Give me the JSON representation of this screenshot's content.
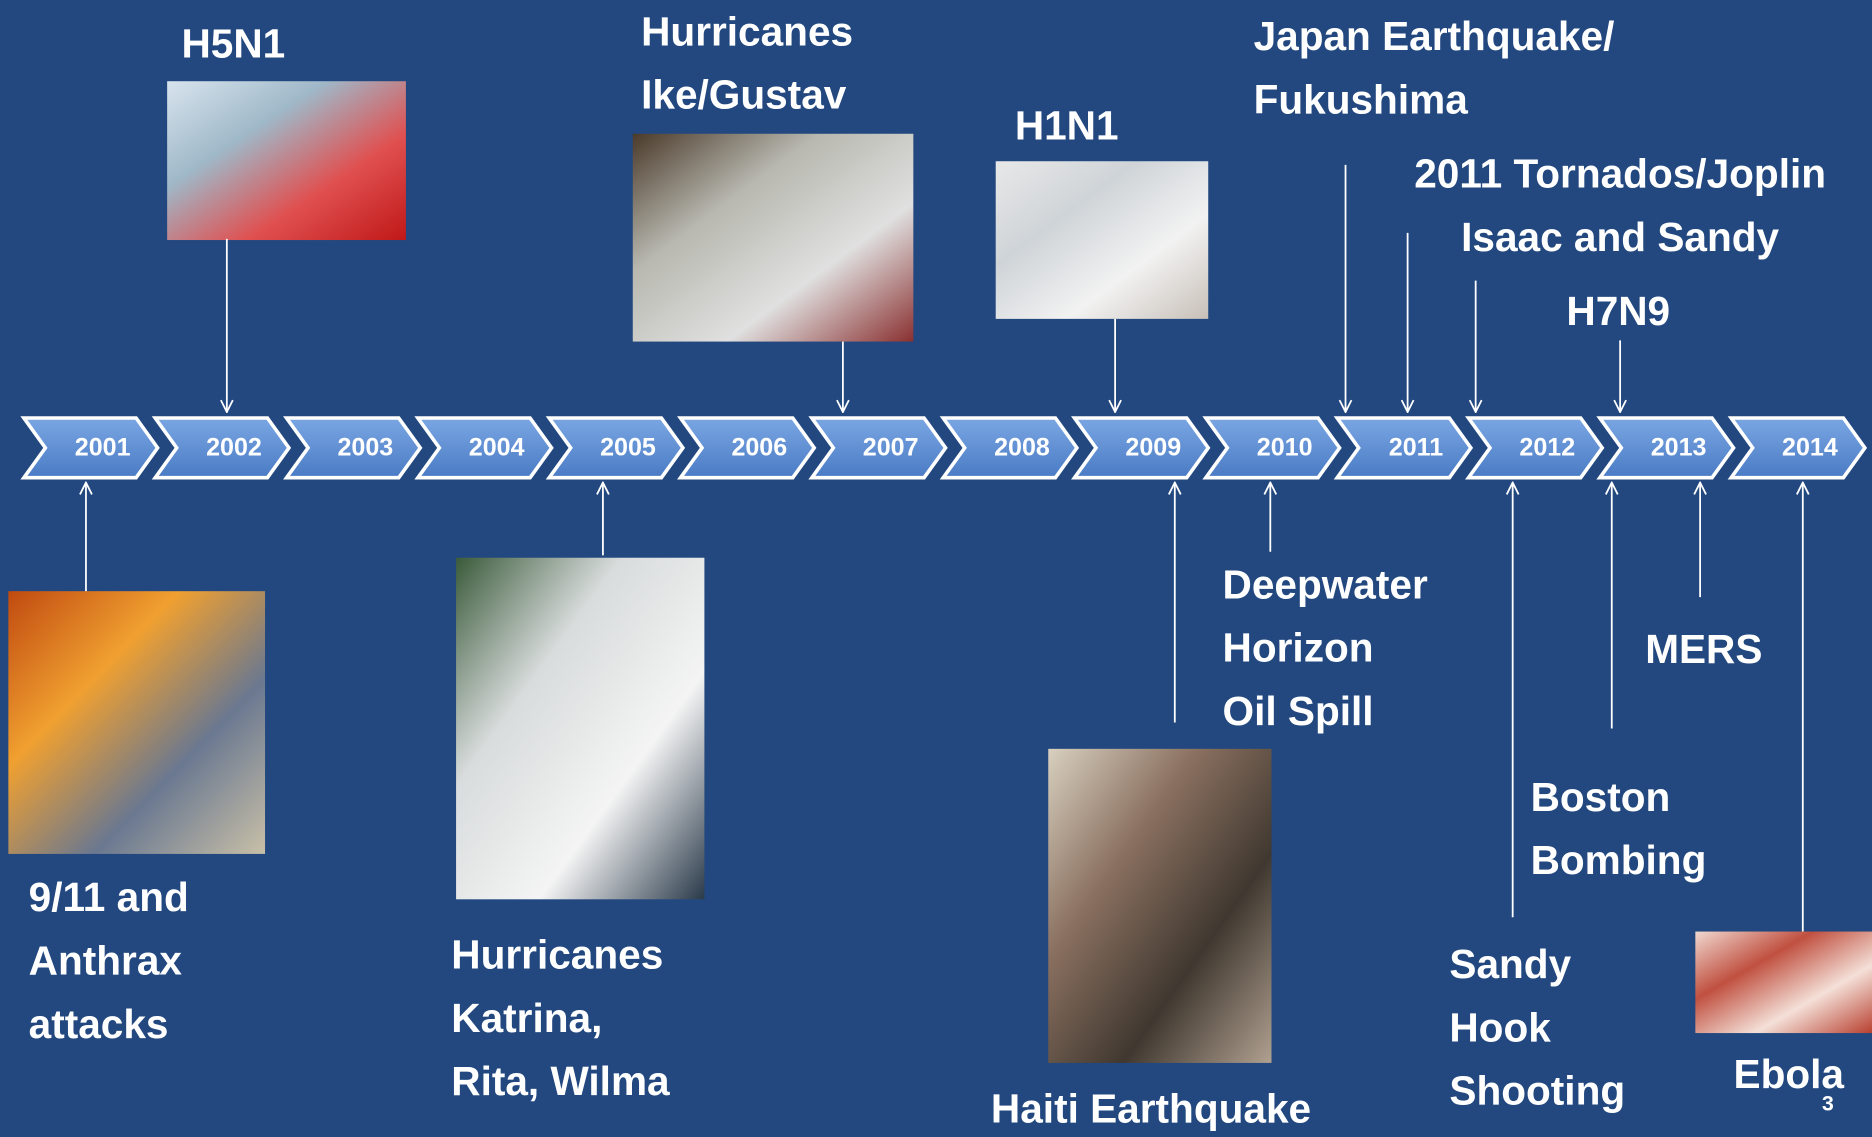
{
  "timeline": {
    "years": [
      "2001",
      "2002",
      "2003",
      "2004",
      "2005",
      "2006",
      "2007",
      "2008",
      "2009",
      "2010",
      "2011",
      "2012",
      "2013",
      "2014"
    ]
  },
  "events_above": [
    {
      "label": [
        "H5N1"
      ]
    },
    {
      "label": [
        "Hurricanes",
        "Ike/Gustav"
      ]
    },
    {
      "label": [
        "H1N1"
      ]
    },
    {
      "label": [
        "Japan Earthquake/",
        "Fukushima"
      ]
    },
    {
      "label": [
        "2011 Tornados/Joplin",
        "Isaac and Sandy"
      ]
    },
    {
      "label": [
        "H7N9"
      ]
    }
  ],
  "events_below": [
    {
      "label": [
        "9/11 and",
        "Anthrax",
        "attacks"
      ]
    },
    {
      "label": [
        "Hurricanes",
        "Katrina,",
        "Rita, Wilma"
      ]
    },
    {
      "label": [
        "Haiti Earthquake"
      ]
    },
    {
      "label": [
        "Deepwater",
        "Horizon",
        "Oil  Spill"
      ]
    },
    {
      "label": [
        "Sandy",
        "Hook",
        "Shooting"
      ]
    },
    {
      "label": [
        "Boston",
        "Bombing"
      ]
    },
    {
      "label": [
        "MERS"
      ]
    },
    {
      "label": [
        "Ebola"
      ]
    }
  ],
  "page_number": "3"
}
